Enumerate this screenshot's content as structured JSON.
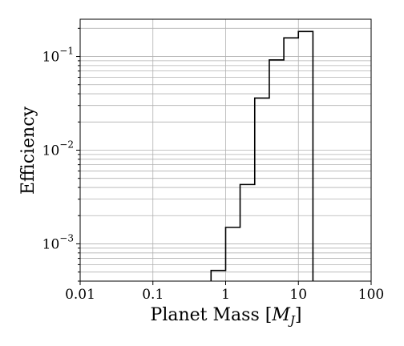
{
  "chart_data": {
    "type": "histogram",
    "xlabel_main": "Planet Mass [",
    "xlabel_var": "M",
    "xlabel_sub": "J",
    "xlabel_close": "]",
    "ylabel": "Efficiency",
    "x_scale": "log",
    "y_scale": "log",
    "xlim": [
      0.01,
      100
    ],
    "ylim": [
      0.0004,
      0.25
    ],
    "grid": true,
    "x_ticks": [
      {
        "value": 0.01,
        "label": "0.01"
      },
      {
        "value": 0.1,
        "label": "0.1"
      },
      {
        "value": 1,
        "label": "1"
      },
      {
        "value": 10,
        "label": "10"
      },
      {
        "value": 100,
        "label": "100"
      }
    ],
    "y_ticks": [
      {
        "value": 0.001,
        "base": "10",
        "exp": "−3"
      },
      {
        "value": 0.01,
        "base": "10",
        "exp": "−2"
      },
      {
        "value": 0.1,
        "base": "10",
        "exp": "−1"
      }
    ],
    "bins": [
      {
        "x0": 0.63,
        "x1": 1.0,
        "value": 0.00052
      },
      {
        "x0": 1.0,
        "x1": 1.58,
        "value": 0.0015
      },
      {
        "x0": 1.58,
        "x1": 2.51,
        "value": 0.0043
      },
      {
        "x0": 2.51,
        "x1": 3.98,
        "value": 0.036
      },
      {
        "x0": 3.98,
        "x1": 6.31,
        "value": 0.092
      },
      {
        "x0": 6.31,
        "x1": 10.0,
        "value": 0.158
      },
      {
        "x0": 10.0,
        "x1": 15.85,
        "value": 0.185
      }
    ],
    "line_color": "#000000",
    "grid_color": "#b0b0b0"
  }
}
